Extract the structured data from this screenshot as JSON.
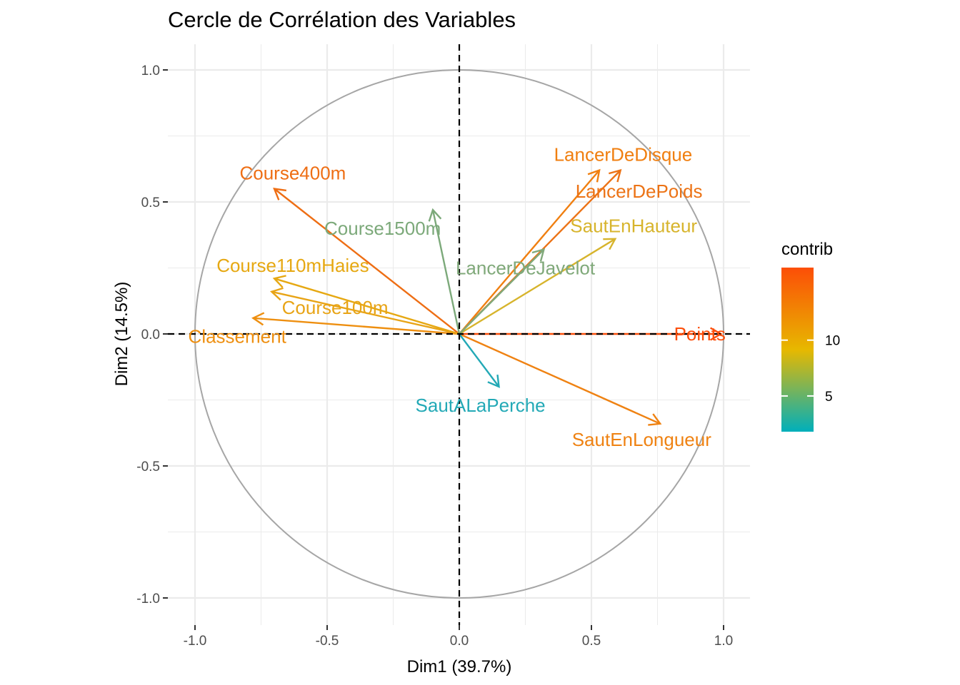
{
  "chart_data": {
    "type": "scatter",
    "subtype": "pca-correlation-circle",
    "title": "Cercle de Corrélation des Variables",
    "xlabel": "Dim1 (39.7%)",
    "ylabel": "Dim2 (14.5%)",
    "xlim": [
      -1.1,
      1.1
    ],
    "ylim": [
      -1.1,
      1.1
    ],
    "x_ticks": [
      -1.0,
      -0.5,
      0.0,
      0.5,
      1.0
    ],
    "x_tick_labels": [
      "-1.0",
      "-0.5",
      "0.0",
      "0.5",
      "1.0"
    ],
    "y_ticks": [
      -1.0,
      -0.5,
      0.0,
      0.5,
      1.0
    ],
    "y_tick_labels": [
      "-1.0",
      "-0.5",
      "0.0",
      "0.5",
      "1.0"
    ],
    "grid": true,
    "unit_circle": true,
    "reference_lines": "dashed at x=0 and y=0",
    "variables": [
      {
        "name": "Points",
        "x": 0.99,
        "y": 0.0,
        "contrib": 16.2,
        "color": "#fc4e0a",
        "label_x": 0.91,
        "label_y": 0.0
      },
      {
        "name": "Course400m",
        "x": -0.7,
        "y": 0.55,
        "contrib": 11.5,
        "color": "#ee6e14",
        "label_x": -0.63,
        "label_y": 0.61
      },
      {
        "name": "LancerDeDisque",
        "x": 0.53,
        "y": 0.62,
        "contrib": 10.6,
        "color": "#f07f10",
        "label_x": 0.62,
        "label_y": 0.68
      },
      {
        "name": "LancerDePoids",
        "x": 0.61,
        "y": 0.62,
        "contrib": 11.3,
        "color": "#ec7316",
        "label_x": 0.68,
        "label_y": 0.54
      },
      {
        "name": "SautEnLongueur",
        "x": 0.76,
        "y": -0.34,
        "contrib": 10.2,
        "color": "#ef8212",
        "label_x": 0.69,
        "label_y": -0.4
      },
      {
        "name": "Classement",
        "x": -0.78,
        "y": 0.06,
        "contrib": 9.5,
        "color": "#ee8f10",
        "label_x": -0.84,
        "label_y": -0.01
      },
      {
        "name": "Course110mHaies",
        "x": -0.7,
        "y": 0.21,
        "contrib": 8.7,
        "color": "#e6a812",
        "label_x": -0.63,
        "label_y": 0.26
      },
      {
        "name": "Course100m",
        "x": -0.71,
        "y": 0.16,
        "contrib": 8.6,
        "color": "#e8a416",
        "label_x": -0.47,
        "label_y": 0.1
      },
      {
        "name": "SautEnHauteur",
        "x": 0.59,
        "y": 0.36,
        "contrib": 7.4,
        "color": "#d7b42c",
        "label_x": 0.66,
        "label_y": 0.41
      },
      {
        "name": "Course1500m",
        "x": -0.1,
        "y": 0.47,
        "contrib": 4.5,
        "color": "#7ca97a",
        "label_x": -0.29,
        "label_y": 0.4
      },
      {
        "name": "LancerDeJavelot",
        "x": 0.32,
        "y": 0.32,
        "contrib": 4.8,
        "color": "#80a97a",
        "label_x": 0.25,
        "label_y": 0.25
      },
      {
        "name": "SautALaPerche",
        "x": 0.15,
        "y": -0.2,
        "contrib": 2.3,
        "color": "#23a9b6",
        "label_x": 0.08,
        "label_y": -0.27
      }
    ],
    "legend": {
      "title": "contrib",
      "position": "right",
      "min": 1.8,
      "max": 16.5,
      "breaks": [
        5,
        10
      ],
      "break_labels": [
        "5",
        "10"
      ],
      "low_color": "#00AFBB",
      "mid_color": "#E7B800",
      "high_color": "#FC4E07"
    }
  }
}
